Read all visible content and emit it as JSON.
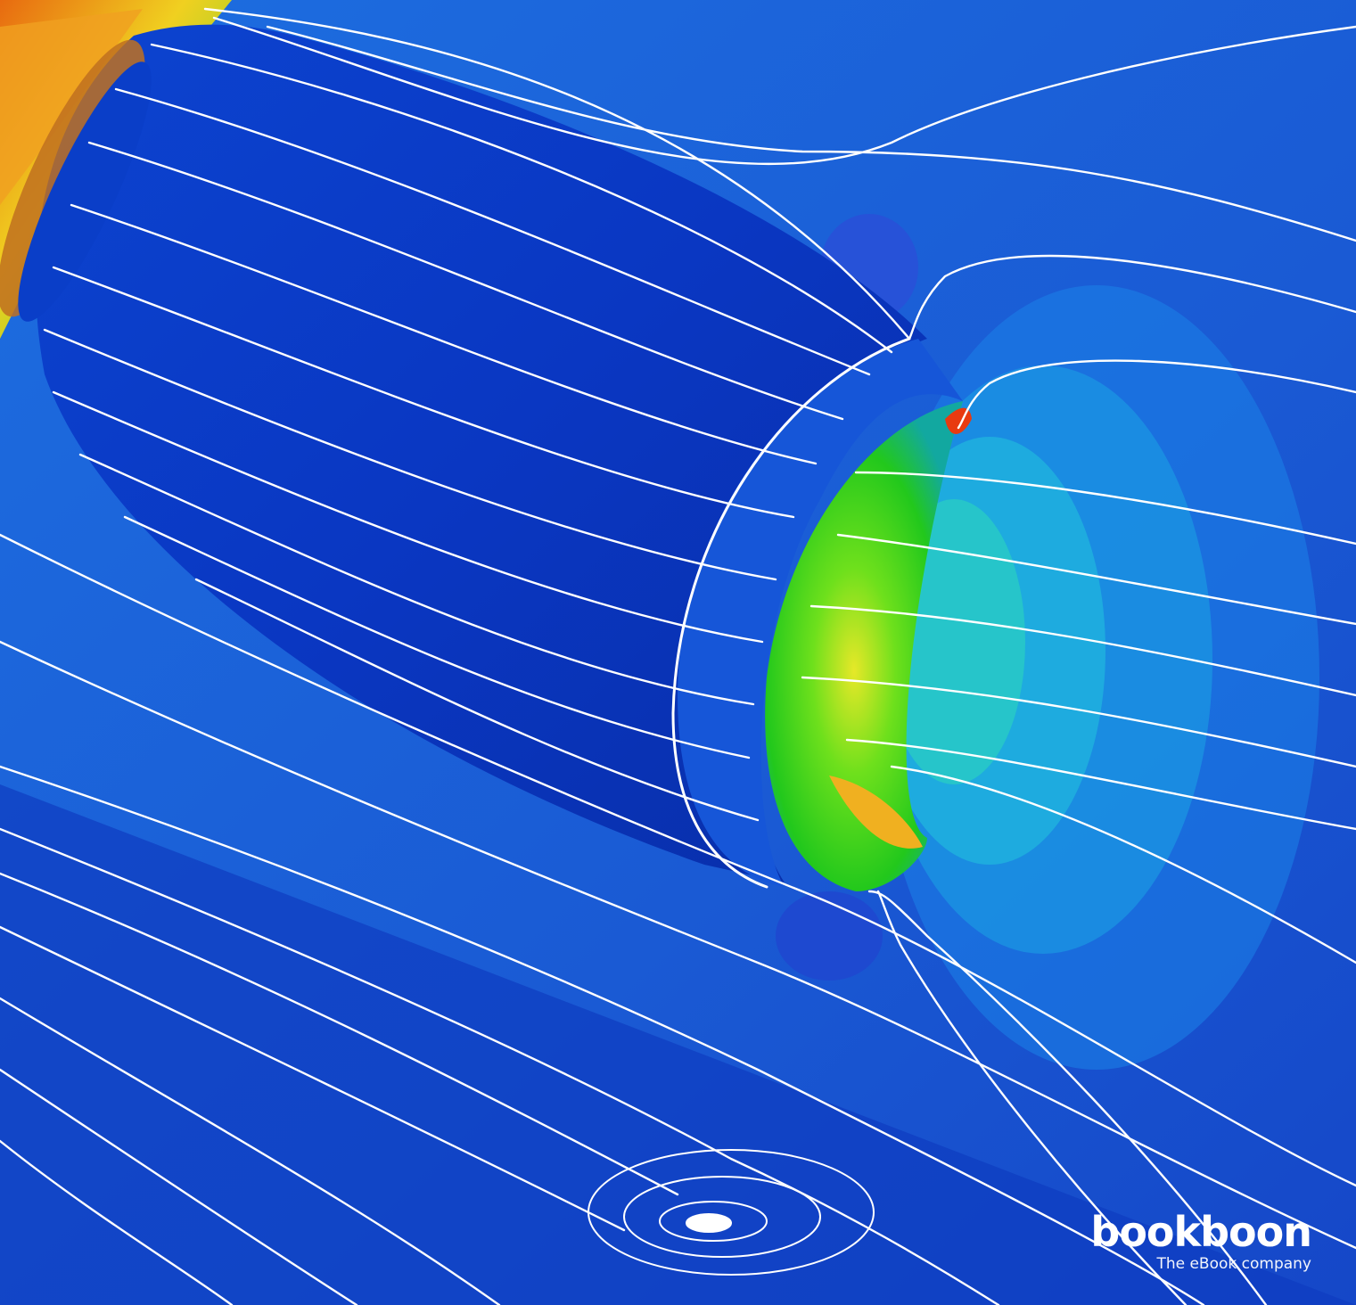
{
  "image": {
    "description_icon": "cfd-engine-nacelle-streamline-render",
    "colors": {
      "background": "#1a5fd6",
      "nacelle_body": "#0b36c4",
      "intake_green": "#3ad41a",
      "intake_yellow": "#f0e020",
      "hot_red": "#e03010",
      "plume_cyan": "#22b8e0",
      "streamline": "#ffffff"
    }
  },
  "branding": {
    "logo": "bookboon",
    "tagline": "The eBook company"
  }
}
